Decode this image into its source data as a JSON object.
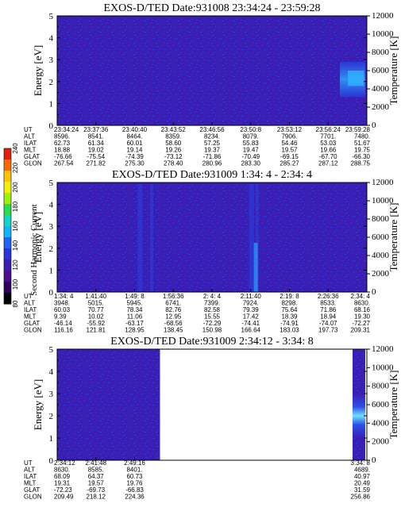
{
  "colors": {
    "spectrogram_bg": "#3a1eb4",
    "spectrogram_mid": "#2c38d8",
    "spectrogram_hi": "#2f8cf0",
    "spectrogram_peak": "#6fe0ff"
  },
  "colorbar": {
    "label": "Second Harmonic Current",
    "ticks": [
      "240",
      "220",
      "200",
      "180",
      "160",
      "140",
      "120",
      "100",
      "80"
    ],
    "colors": [
      "#e81c0c",
      "#ff6a00",
      "#ffc400",
      "#f2f200",
      "#9ef200",
      "#27e050",
      "#10d8c8",
      "#14b4ff",
      "#1e62ff",
      "#2c34e0",
      "#3a1eb4",
      "#4a1090",
      "#300060",
      "#000000"
    ]
  },
  "chart_data": [
    {
      "type": "heatmap",
      "title": "EXOS-D/TED   Date:931008  23:34:24 - 23:59:28",
      "ylabel": "Energy [eV]",
      "y2label": "Temperature [K]",
      "ylim": [
        0,
        5
      ],
      "y2lim": [
        0,
        12000
      ],
      "yticks": [
        "0",
        "1",
        "2",
        "3",
        "4",
        "5"
      ],
      "y2ticks": [
        "0",
        "2000",
        "4000",
        "6000",
        "8000",
        "10000",
        "12000"
      ],
      "data_extent": [
        0,
        1
      ],
      "ephemeris": {
        "labels": [
          "UT",
          "ALT",
          "ILAT",
          "MLT",
          "GLAT",
          "GLON"
        ],
        "columns": [
          [
            "23:34:24",
            "8596.",
            "62.73",
            "18.88",
            "-76.66",
            "267.54"
          ],
          [
            "23:37:36",
            "8541.",
            "61.34",
            "19.02",
            "-75.54",
            "271.82"
          ],
          [
            "23:40:40",
            "8464.",
            "60.01",
            "19.14",
            "-74.39",
            "275.30"
          ],
          [
            "23:43:52",
            "8359.",
            "58.60",
            "19.26",
            "-73.12",
            "278.40"
          ],
          [
            "23:46:56",
            "8234.",
            "57.25",
            "19.37",
            "-71.86",
            "280.96"
          ],
          [
            "23:50:8",
            "8079.",
            "55.83",
            "19.47",
            "-70.49",
            "283.30"
          ],
          [
            "23:53:12",
            "7906.",
            "54.46",
            "19.57",
            "-69.15",
            "285.27"
          ],
          [
            "23:56:24",
            "7701.",
            "53.03",
            "19.66",
            "-67.70",
            "287.12"
          ],
          [
            "23:59:28",
            "7480.",
            "51.67",
            "19.75",
            "-66.30",
            "288.75"
          ]
        ]
      }
    },
    {
      "type": "heatmap",
      "title": "EXOS-D/TED   Date:931009  1:34: 4 - 2:34: 4",
      "ylabel": "Energy [eV]",
      "y2label": "Temperature [K]",
      "ylim": [
        0,
        5
      ],
      "y2lim": [
        0,
        12000
      ],
      "yticks": [
        "0",
        "1",
        "2",
        "3",
        "4",
        "5"
      ],
      "y2ticks": [
        "0",
        "2000",
        "4000",
        "6000",
        "8000",
        "10000",
        "12000"
      ],
      "data_extent": [
        0,
        1
      ],
      "ephemeris": {
        "labels": [
          "UT",
          "ALT",
          "ILAT",
          "MLT",
          "GLAT",
          "GLON"
        ],
        "columns": [
          [
            "1:34: 4",
            "3948.",
            "60.03",
            "9.39",
            "-46.14",
            "116.16"
          ],
          [
            "1:41:40",
            "5015.",
            "70.77",
            "10.02",
            "-55.92",
            "121.81"
          ],
          [
            "1:49: 8",
            "5945.",
            "78.34",
            "11.06",
            "-63.17",
            "128.95"
          ],
          [
            "1:56:36",
            "6741.",
            "82.76",
            "12.95",
            "-68.56",
            "138.45"
          ],
          [
            "2: 4: 4",
            "7399.",
            "82.58",
            "15.55",
            "-72.29",
            "150.98"
          ],
          [
            "2:11:40",
            "7924.",
            "79.39",
            "17.42",
            "-74.41",
            "166.64"
          ],
          [
            "2:19: 8",
            "8298.",
            "75.64",
            "18.39",
            "-74.91",
            "183.03"
          ],
          [
            "2:26:36",
            "8533.",
            "71.86",
            "18.94",
            "-74.07",
            "197.73"
          ],
          [
            "2:34: 4",
            "8630.",
            "68.16",
            "19.30",
            "-72.27",
            "209.31"
          ]
        ]
      }
    },
    {
      "type": "heatmap",
      "title": "EXOS-D/TED   Date:931009  2:34:12 - 3:34: 8",
      "ylabel": "Energy [eV]",
      "y2label": "Temperature [K]",
      "ylim": [
        0,
        5
      ],
      "y2lim": [
        0,
        12000
      ],
      "yticks": [
        "0",
        "1",
        "2",
        "3",
        "4",
        "5"
      ],
      "y2ticks": [
        "0",
        "2000",
        "4000",
        "6000",
        "8000",
        "10000",
        "12000"
      ],
      "data_extent": [
        0,
        0.332
      ],
      "ephemeris": {
        "labels": [
          "UT",
          "ALT",
          "ILAT",
          "MLT",
          "GLAT",
          "GLON"
        ],
        "columns": [
          [
            "2:34:12",
            "8630.",
            "68.09",
            "19.31",
            "-72.23",
            "209.49"
          ],
          [
            "2:41:48",
            "8585.",
            "64.37",
            "19.57",
            "-69.73",
            "218.12"
          ],
          [
            "2:49:16",
            "8401.",
            "60.73",
            "19.76",
            "-66.83",
            "224.36"
          ],
          [
            "3:34: 8",
            "4689.",
            "40.97",
            "20.49",
            "31.59",
            "256.86"
          ]
        ],
        "column_fracs": [
          0,
          0.125,
          0.25,
          1
        ]
      }
    }
  ]
}
